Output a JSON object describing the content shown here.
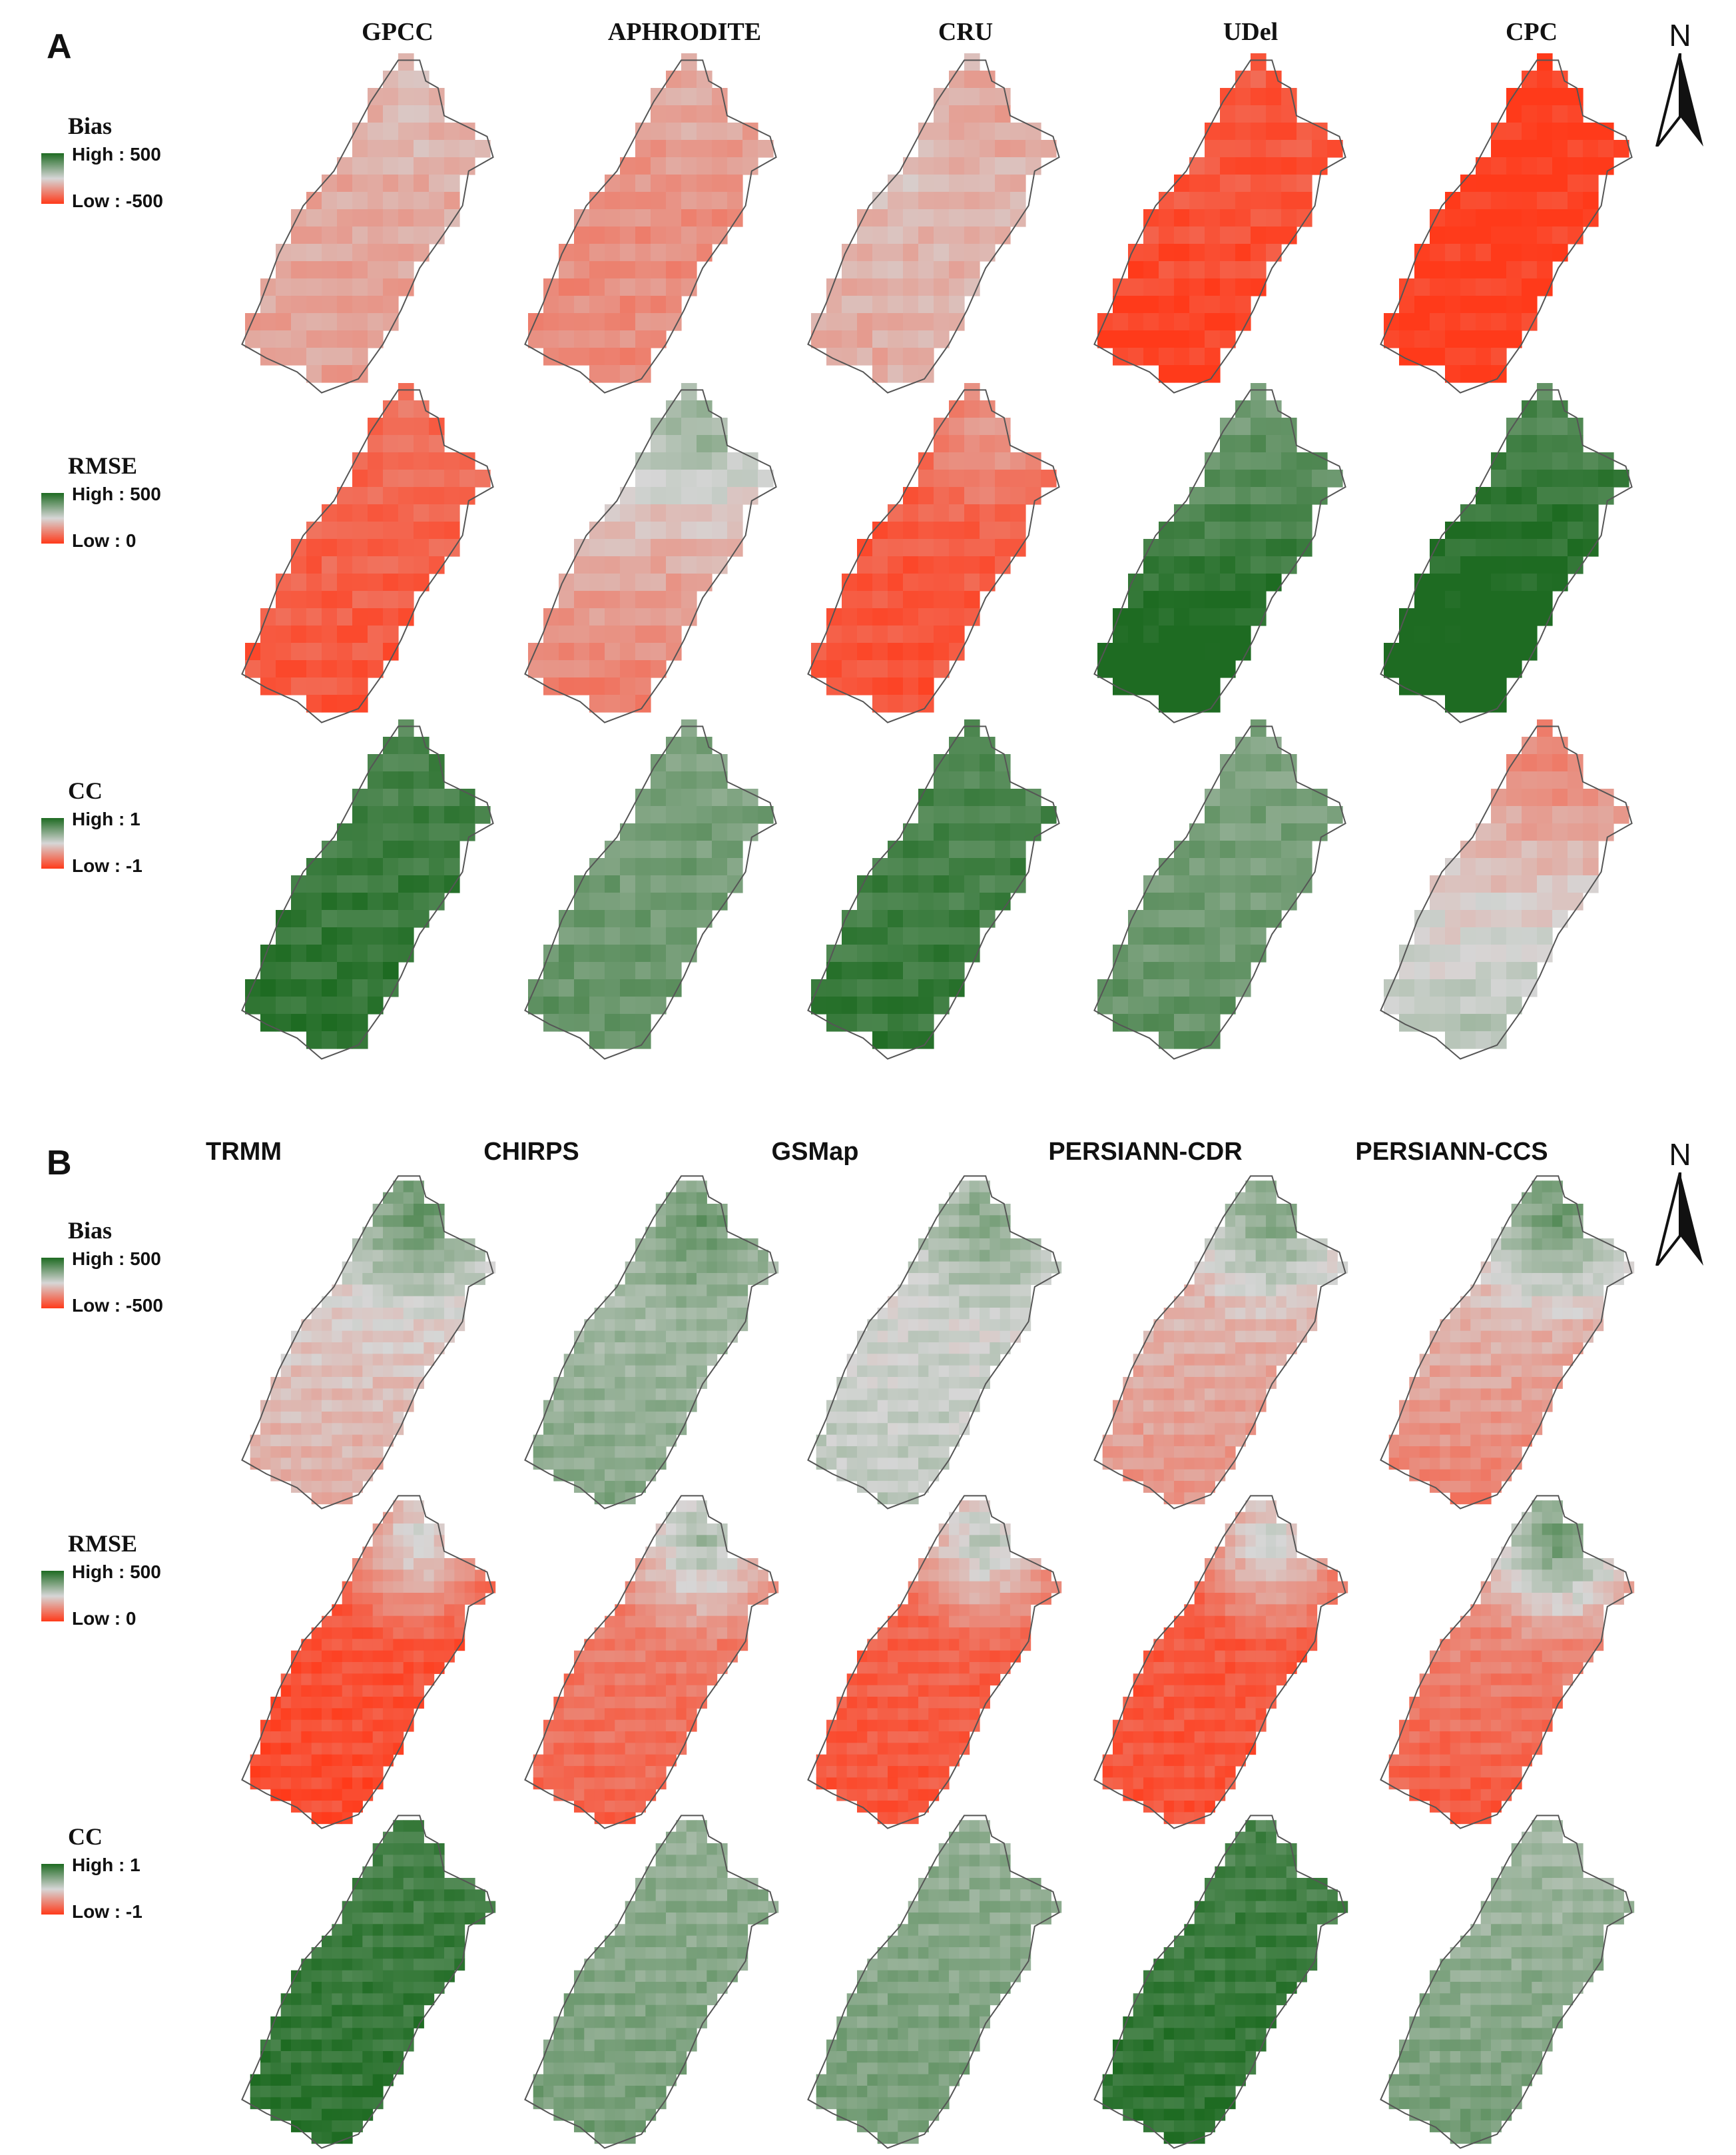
{
  "panels": [
    {
      "label": "A",
      "title_font": "serif",
      "north": "N",
      "columns": [
        "GPCC",
        "APHRODITE",
        "CRU",
        "UDel",
        "CPC"
      ],
      "rows": [
        {
          "metric": "Bias",
          "high": "High : 500",
          "low": "Low : -500"
        },
        {
          "metric": "RMSE",
          "high": "High : 500",
          "low": "Low : 0"
        },
        {
          "metric": "CC",
          "high": "High : 1",
          "low": "Low : -1"
        }
      ]
    },
    {
      "label": "B",
      "title_font": "sans",
      "north": "N",
      "columns": [
        "TRMM",
        "CHIRPS",
        "GSMap",
        "PERSIANN-CDR",
        "PERSIANN-CCS"
      ],
      "rows": [
        {
          "metric": "Bias",
          "high": "High : 500",
          "low": "Low : -500"
        },
        {
          "metric": "RMSE",
          "high": "High : 500",
          "low": "Low : 0"
        },
        {
          "metric": "CC",
          "high": "High : 1",
          "low": "Low : -1"
        }
      ]
    }
  ],
  "colors": {
    "high": "#1e6b22",
    "mid": "#d6d6d6",
    "low": "#ff3a1a",
    "outline": "#555555"
  },
  "map_values": [
    [
      {
        "base": -0.3,
        "grad": -0.05,
        "ne": 0.1
      },
      {
        "base": -0.45,
        "grad": -0.05,
        "ne": 0.15
      },
      {
        "base": -0.2,
        "grad": -0.1,
        "ne": -0.2
      },
      {
        "base": -0.85,
        "grad": -0.15,
        "ne": -0.1
      },
      {
        "base": -0.97,
        "grad": 0.0,
        "ne": 0.0
      },
      {
        "base": -0.75,
        "grad": -0.1,
        "ne": 0.0
      },
      {
        "base": -0.25,
        "grad": -0.4,
        "ne": 0.3
      },
      {
        "base": -0.8,
        "grad": -0.05,
        "ne": 0.4
      },
      {
        "base": 0.85,
        "grad": 0.45,
        "ne": 0.1
      },
      {
        "base": 0.97,
        "grad": 0.3,
        "ne": 0.0
      },
      {
        "base": 0.85,
        "grad": 0.1,
        "ne": 0.0
      },
      {
        "base": 0.55,
        "grad": 0.1,
        "ne": 0.0
      },
      {
        "base": 0.8,
        "grad": 0.1,
        "ne": 0.0
      },
      {
        "base": 0.55,
        "grad": 0.1,
        "ne": 0.0
      },
      {
        "base": -0.1,
        "grad": 0.35,
        "ne": -0.2
      }
    ],
    [
      {
        "base": -0.1,
        "grad": -0.2,
        "ne": 0.6
      },
      {
        "base": 0.3,
        "grad": 0.15,
        "ne": 0.4
      },
      {
        "base": 0.05,
        "grad": 0.1,
        "ne": 0.5
      },
      {
        "base": -0.25,
        "grad": -0.2,
        "ne": 0.6
      },
      {
        "base": -0.25,
        "grad": -0.35,
        "ne": 0.6
      },
      {
        "base": -0.85,
        "grad": -0.05,
        "ne": 0.9
      },
      {
        "base": -0.6,
        "grad": -0.15,
        "ne": 0.8
      },
      {
        "base": -0.75,
        "grad": -0.1,
        "ne": 0.9
      },
      {
        "base": -0.8,
        "grad": -0.05,
        "ne": 0.9
      },
      {
        "base": -0.55,
        "grad": -0.3,
        "ne": 0.95
      },
      {
        "base": 0.85,
        "grad": 0.1,
        "ne": 0.0
      },
      {
        "base": 0.45,
        "grad": 0.1,
        "ne": 0.0
      },
      {
        "base": 0.45,
        "grad": 0.1,
        "ne": 0.0
      },
      {
        "base": 0.85,
        "grad": 0.1,
        "ne": 0.0
      },
      {
        "base": 0.4,
        "grad": 0.15,
        "ne": 0.0
      }
    ]
  ]
}
